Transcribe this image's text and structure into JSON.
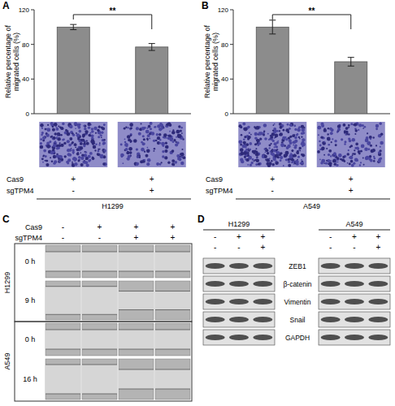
{
  "chart_data": [
    {
      "type": "bar",
      "y_label": "Relative percentage of migrated cells (%)",
      "categories": [
        null,
        null
      ],
      "values": [
        100,
        77
      ],
      "errors": [
        3,
        4
      ],
      "color": "#8c8c8c",
      "ylim": [
        0,
        120
      ],
      "yticks": [
        0,
        40,
        80,
        120
      ],
      "annotations": {
        "panel": "A",
        "significance": "**",
        "conditions": [
          {
            "label": "Cas9",
            "values": [
              "+",
              "+"
            ]
          },
          {
            "label": "sgTPM4",
            "values": [
              "-",
              "+"
            ]
          }
        ],
        "cell_line": "H1299"
      }
    },
    {
      "type": "bar",
      "y_label": "Relative percentage of migrated cells (%)",
      "categories": [
        null,
        null
      ],
      "values": [
        100,
        60
      ],
      "errors": [
        8,
        5
      ],
      "color": "#8c8c8c",
      "ylim": [
        0,
        120
      ],
      "yticks": [
        0,
        40,
        80,
        120
      ],
      "annotations": {
        "panel": "B",
        "significance": "**",
        "conditions": [
          {
            "label": "Cas9",
            "values": [
              "+",
              "+"
            ]
          },
          {
            "label": "sgTPM4",
            "values": [
              "-",
              "+"
            ]
          }
        ],
        "cell_line": "A549"
      }
    }
  ],
  "figure": {
    "C": {
      "panel": "C",
      "conditions": [
        {
          "label": "Cas9",
          "values": [
            "-",
            "+",
            "+",
            "+"
          ]
        },
        {
          "label": "sgTPM4",
          "values": [
            "-",
            "-",
            "+",
            "+"
          ]
        }
      ],
      "rows": [
        {
          "cell_line": "H1299",
          "times": [
            "0 h",
            "9 h"
          ]
        },
        {
          "cell_line": "A549",
          "times": [
            "0 h",
            "16 h"
          ]
        }
      ]
    },
    "D": {
      "panel": "D",
      "blots": [
        {
          "cell_line": "H1299",
          "conditions": [
            [
              "-",
              "+",
              "+"
            ],
            [
              "-",
              "-",
              "+"
            ]
          ]
        },
        {
          "cell_line": "A549",
          "conditions": [
            [
              "-",
              "+",
              "+"
            ],
            [
              "-",
              "-",
              "+"
            ]
          ]
        }
      ],
      "proteins": [
        "ZEB1",
        "β-catenin",
        "Vimentin",
        "Snail",
        "GAPDH"
      ]
    }
  }
}
